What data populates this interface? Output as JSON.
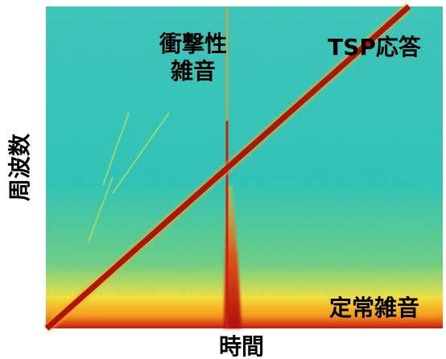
{
  "chart_data": {
    "type": "spectrogram",
    "x_label": "時間",
    "y_label": "周波数",
    "annotations": [
      "衝撃性",
      "雑音",
      "TSP応答",
      "定常雑音"
    ]
  }
}
